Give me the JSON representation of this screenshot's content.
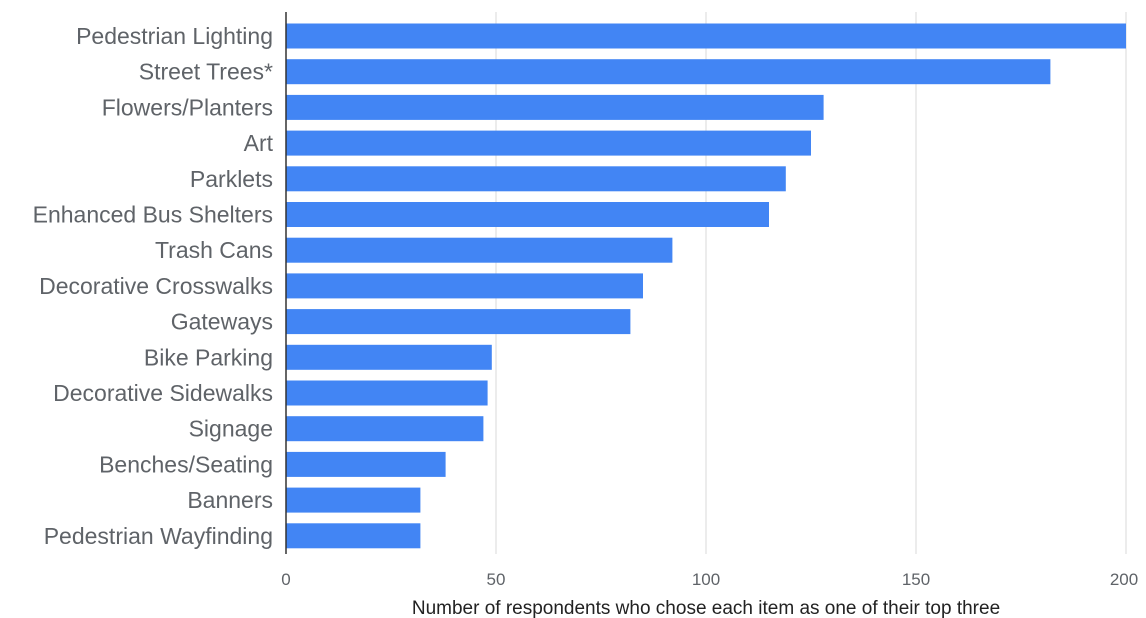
{
  "chart_data": {
    "type": "bar",
    "orientation": "horizontal",
    "categories": [
      "Pedestrian Lighting",
      "Street Trees*",
      "Flowers/Planters",
      "Art",
      "Parklets",
      "Enhanced Bus Shelters",
      "Trash Cans",
      "Decorative Crosswalks",
      "Gateways",
      "Bike Parking",
      "Decorative Sidewalks",
      "Signage",
      "Benches/Seating",
      "Banners",
      "Pedestrian Wayfinding"
    ],
    "values": [
      200,
      182,
      128,
      125,
      119,
      115,
      92,
      85,
      82,
      49,
      48,
      47,
      38,
      32,
      32
    ],
    "title": "",
    "xlabel": "Number of respondents who chose each item as one of their top three",
    "ylabel": "",
    "xlim": [
      0,
      200
    ],
    "xticks": [
      0,
      50,
      100,
      150,
      200
    ],
    "xtick_labels": [
      "0",
      "50",
      "100",
      "150",
      "200"
    ],
    "grid": true,
    "legend": "none",
    "bar_color": "#4285f4",
    "grid_color": "#d9d9d9",
    "axis_color": "#333333"
  }
}
